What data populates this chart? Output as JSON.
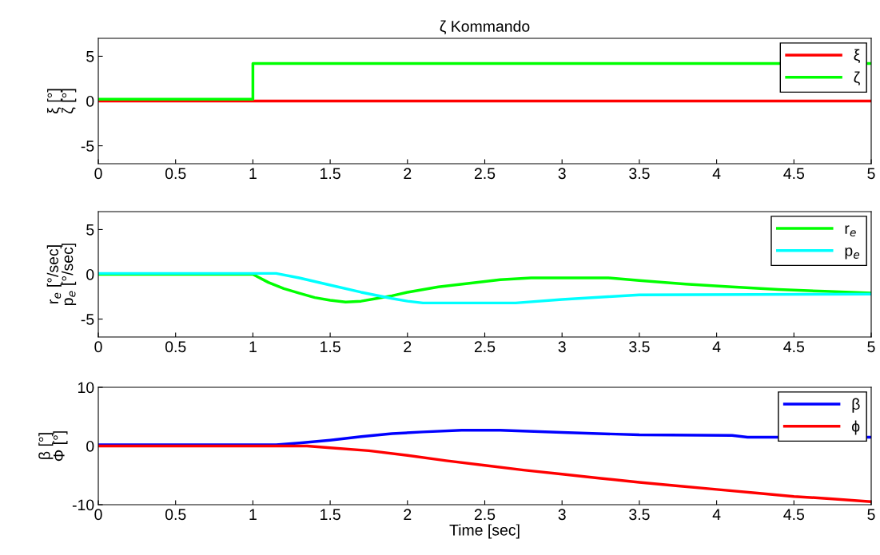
{
  "chart_data": [
    {
      "type": "line",
      "title": "ζ Kommando",
      "ylabel": "ξ [°]\nζ [°]",
      "xlim": [
        0,
        5
      ],
      "xticks": [
        0,
        0.5,
        1,
        1.5,
        2,
        2.5,
        3,
        3.5,
        4,
        4.5,
        5
      ],
      "ylim": [
        -7,
        7
      ],
      "yticks": [
        -5,
        0,
        5
      ],
      "legend": "top right",
      "grid": false,
      "series": [
        {
          "name": "ξ",
          "color": "#ff0000",
          "x": [
            0,
            5
          ],
          "values": [
            0,
            0
          ]
        },
        {
          "name": "ζ",
          "color": "#00ff00",
          "type": "step",
          "x": [
            0,
            1,
            5
          ],
          "values": [
            0.2,
            4.2,
            4.2
          ]
        }
      ]
    },
    {
      "type": "line",
      "ylabel": "r$_{e}$ [°/sec]\np$_{e}$ [°/sec]",
      "xlim": [
        0,
        5
      ],
      "xticks": [
        0,
        0.5,
        1,
        1.5,
        2,
        2.5,
        3,
        3.5,
        4,
        4.5,
        5
      ],
      "ylim": [
        -7,
        7
      ],
      "yticks": [
        -5,
        0,
        5
      ],
      "legend": "top right",
      "grid": false,
      "series": [
        {
          "name": "r$_{e}$",
          "color": "#00ff00",
          "x": [
            0,
            1,
            1.1,
            1.2,
            1.3,
            1.4,
            1.5,
            1.6,
            1.7,
            1.8,
            1.9,
            2.0,
            2.2,
            2.4,
            2.6,
            2.8,
            3.3,
            3.5,
            3.8,
            4.1,
            4.4,
            4.7,
            5
          ],
          "values": [
            0,
            0,
            -0.9,
            -1.6,
            -2.1,
            -2.6,
            -2.9,
            -3.1,
            -3.0,
            -2.7,
            -2.4,
            -2.0,
            -1.4,
            -1.0,
            -0.6,
            -0.4,
            -0.4,
            -0.7,
            -1.1,
            -1.4,
            -1.7,
            -1.9,
            -2.1
          ]
        },
        {
          "name": "p$_{e}$",
          "color": "#00ffff",
          "x": [
            0,
            1.15,
            1.3,
            1.5,
            1.7,
            1.9,
            2.0,
            2.1,
            2.7,
            3.0,
            3.3,
            3.5,
            5
          ],
          "values": [
            0.1,
            0.1,
            -0.4,
            -1.2,
            -2.0,
            -2.7,
            -3.0,
            -3.2,
            -3.2,
            -2.8,
            -2.5,
            -2.3,
            -2.2
          ]
        }
      ]
    },
    {
      "type": "line",
      "xlabel": "Time [sec]",
      "ylabel": "β [°]\nΦ [°]",
      "xlim": [
        0,
        5
      ],
      "xticks": [
        0,
        0.5,
        1,
        1.5,
        2,
        2.5,
        3,
        3.5,
        4,
        4.5,
        5
      ],
      "ylim": [
        -10,
        10
      ],
      "yticks": [
        -10,
        0,
        10
      ],
      "legend": "top right",
      "grid": false,
      "series": [
        {
          "name": "β",
          "color": "#0000ff",
          "x": [
            0,
            1.15,
            1.3,
            1.5,
            1.7,
            1.9,
            2.1,
            2.35,
            2.6,
            3.0,
            3.5,
            4.1,
            4.2,
            5
          ],
          "values": [
            0.2,
            0.2,
            0.5,
            1.0,
            1.6,
            2.1,
            2.4,
            2.7,
            2.7,
            2.3,
            1.9,
            1.8,
            1.5,
            1.5
          ]
        },
        {
          "name": "ϕ",
          "color": "#ff0000",
          "x": [
            0,
            1.35,
            1.5,
            1.75,
            2.0,
            2.25,
            2.5,
            2.75,
            3.0,
            3.25,
            3.5,
            3.75,
            4.0,
            4.25,
            4.5,
            4.75,
            5
          ],
          "values": [
            0,
            0,
            -0.3,
            -0.8,
            -1.6,
            -2.5,
            -3.3,
            -4.1,
            -4.8,
            -5.5,
            -6.2,
            -6.8,
            -7.4,
            -8.0,
            -8.6,
            -9.0,
            -9.5
          ]
        }
      ]
    }
  ]
}
